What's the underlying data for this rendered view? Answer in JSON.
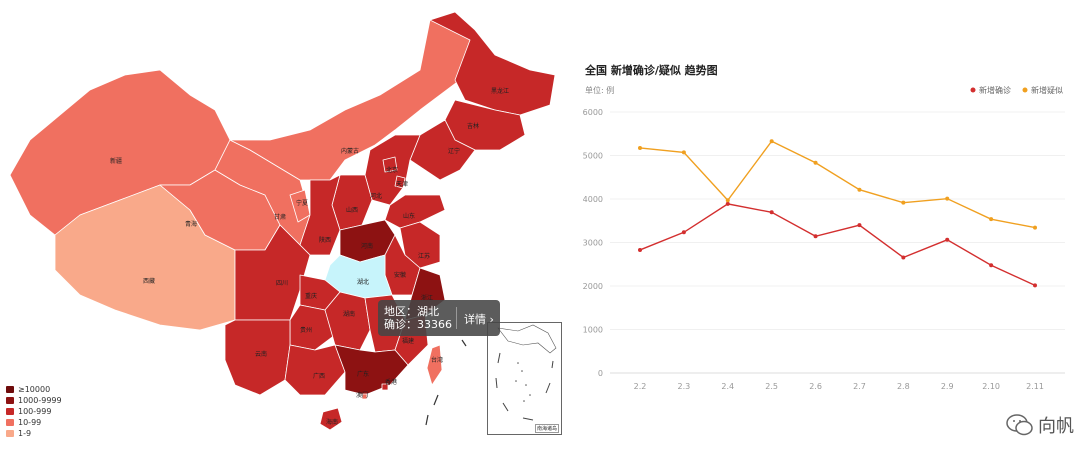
{
  "map": {
    "legend": [
      {
        "label": "≥10000",
        "color": "#6e0b0b"
      },
      {
        "label": "1000-9999",
        "color": "#8d1212"
      },
      {
        "label": "100-999",
        "color": "#c62828"
      },
      {
        "label": "10-99",
        "color": "#f07060"
      },
      {
        "label": "1-9",
        "color": "#f9a98a"
      }
    ],
    "provinces": [
      "新疆",
      "西藏",
      "青海",
      "甘肃",
      "宁夏",
      "内蒙古",
      "黑龙江",
      "吉林",
      "辽宁",
      "北京",
      "天津",
      "河北",
      "山西",
      "山东",
      "陕西",
      "河南",
      "江苏",
      "安徽",
      "湖北",
      "四川",
      "重庆",
      "贵州",
      "湖南",
      "江西",
      "浙江",
      "云南",
      "广西",
      "广东",
      "福建",
      "台湾",
      "香港",
      "澳门",
      "海南"
    ],
    "tooltip": {
      "line1": "地区：湖北",
      "line2": "确诊：33366",
      "detail": "详情 ›"
    },
    "inset_label": "南海诸岛",
    "colors": {
      "hubei": "#c7f4fb",
      "level1": "#6e0b0b",
      "level2": "#8d1212",
      "level3": "#c62828",
      "level4": "#f07060",
      "level5": "#f9a98a"
    }
  },
  "chart_data": {
    "type": "line",
    "title": "全国 新增确诊/疑似 趋势图",
    "subtitle": "单位: 例",
    "categories": [
      "2.2",
      "2.3",
      "2.4",
      "2.5",
      "2.6",
      "2.7",
      "2.8",
      "2.9",
      "2.10",
      "2.11"
    ],
    "ylim": [
      0,
      6000
    ],
    "yticks": [
      0,
      1000,
      2000,
      3000,
      4000,
      5000,
      6000
    ],
    "legend_position": "top-right",
    "grid": true,
    "series": [
      {
        "name": "新增确诊",
        "color": "#d32f2f",
        "values": [
          2829,
          3235,
          3887,
          3694,
          3143,
          3399,
          2656,
          3062,
          2478,
          2015
        ]
      },
      {
        "name": "新增疑似",
        "color": "#f0a020",
        "values": [
          5173,
          5072,
          3971,
          5328,
          4833,
          4214,
          3916,
          4008,
          3536,
          3342
        ]
      }
    ]
  },
  "watermark": {
    "text": "向帆",
    "icon": "wechat-icon"
  }
}
